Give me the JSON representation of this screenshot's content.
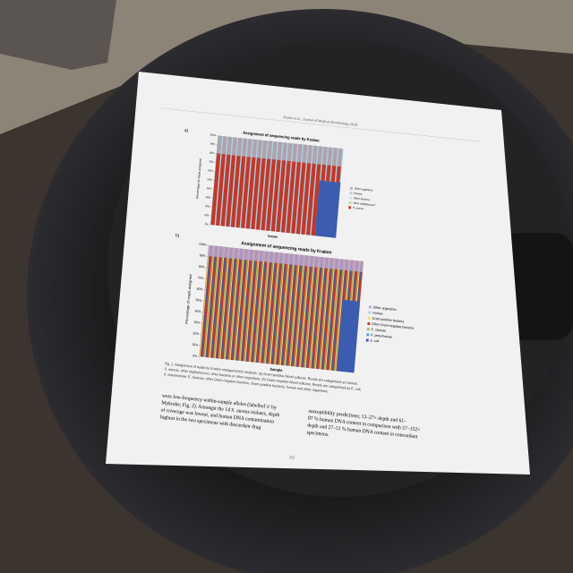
{
  "header": {
    "running_title": "Bowie et al., Journal of Medical Microbiology 2019"
  },
  "figure": {
    "panels": [
      {
        "label": "a)",
        "title": "Assignment of sequencing reads by Kraken",
        "y_label": "Percentage of reads assigned",
        "x_label": "Sample",
        "yticks": [
          {
            "value": 0,
            "label": "0%"
          },
          {
            "value": 10,
            "label": "10%"
          },
          {
            "value": 20,
            "label": "20%"
          },
          {
            "value": 30,
            "label": "30%"
          },
          {
            "value": 40,
            "label": "40%"
          },
          {
            "value": 50,
            "label": "50%"
          },
          {
            "value": 60,
            "label": "60%"
          },
          {
            "value": 70,
            "label": "70%"
          },
          {
            "value": 80,
            "label": "80%"
          },
          {
            "value": 90,
            "label": "90%"
          },
          {
            "value": 100,
            "label": "100%"
          }
        ],
        "legend": [
          {
            "name": "Other organisms",
            "color": "#b9a8d6"
          },
          {
            "name": "Human",
            "color": "#a9cfe3"
          },
          {
            "name": "Other bacteria",
            "color": "#d9d9d9"
          },
          {
            "name": "Other staphylococci",
            "color": "#c9dd8a"
          },
          {
            "name": "S. aureus",
            "color": "#c0392b"
          }
        ]
      },
      {
        "label": "b)",
        "title": "Assignment of sequencing reads by Kraken",
        "y_label": "Percentage of reads assigned",
        "x_label": "Sample",
        "yticks": [
          {
            "value": 0,
            "label": "0%"
          },
          {
            "value": 10,
            "label": "10%"
          },
          {
            "value": 20,
            "label": "20%"
          },
          {
            "value": 30,
            "label": "30%"
          },
          {
            "value": 40,
            "label": "40%"
          },
          {
            "value": 50,
            "label": "50%"
          },
          {
            "value": 60,
            "label": "60%"
          },
          {
            "value": 70,
            "label": "70%"
          },
          {
            "value": 80,
            "label": "80%"
          },
          {
            "value": 90,
            "label": "90%"
          },
          {
            "value": 100,
            "label": "100%"
          }
        ],
        "legend": [
          {
            "name": "Other organisms",
            "color": "#b9a8d6"
          },
          {
            "name": "Human",
            "color": "#a9cfe3"
          },
          {
            "name": "Gram-positive bacteria",
            "color": "#f3d77a"
          },
          {
            "name": "Other Gram-negative bacteria",
            "color": "#c0392b"
          },
          {
            "name": "E. cloacae",
            "color": "#9bc45a"
          },
          {
            "name": "K. pneumoniae",
            "color": "#4f9fc9"
          },
          {
            "name": "E. coli",
            "color": "#3c5cb0"
          }
        ]
      }
    ],
    "caption": [
      "Fig. 1. Assignment of reads by Kraken metagenomics analysis. (a) Gram-positive blood cultures. Reads are categorised as Human,",
      "S. aureus, other staphylococci, other bacteria or other organisms. (b) Gram-negative blood cultures. Reads are categorised as E. coli,",
      "K. pneumoniae, E. cloacae, other Gram-negative bacteria, Gram-positive bacteria, human and other organisms."
    ]
  },
  "body": {
    "left": [
      "were low-frequency within-sample alleles (labelled 'z' by",
      "Mykrobe; Fig. 2). Amongst the 14 S. aureus isolates, depth",
      "of coverage was lowest, and human DNA contamination",
      "highest in the two specimens with discordant drug"
    ],
    "right": [
      "susceptibility predictions; 13–27× depth and 61–",
      "87 % human DNA content in comparison with 57–152×",
      "depth and 27–51 % human DNA content in concordant",
      "specimens."
    ]
  },
  "page_number": "352"
}
